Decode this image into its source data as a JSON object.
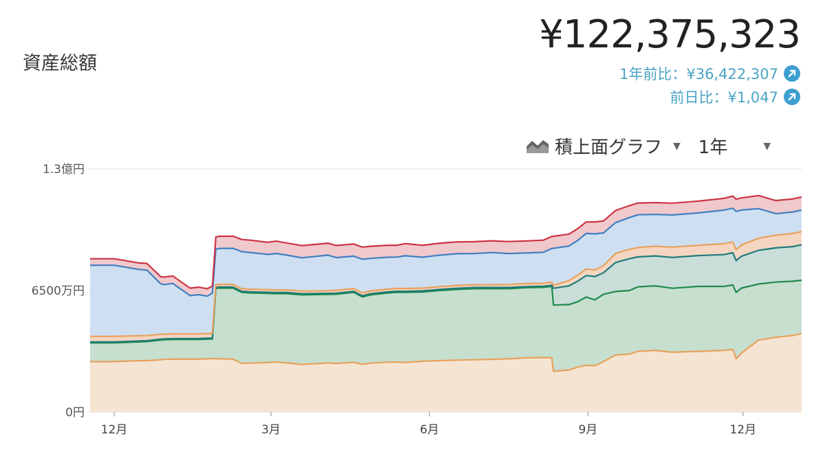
{
  "header": {
    "title": "資産総額",
    "total": "¥122,375,323",
    "year_compare": "1年前比：¥36,422,307",
    "day_compare": "前日比：¥1,047"
  },
  "controls": {
    "chart_type": "積上面グラフ",
    "range": "1年"
  },
  "colors": {
    "orange": "#e8a15a",
    "green": "#1d8a4a",
    "teal": "#1f7a7a",
    "blue": "#3f7fc0",
    "red": "#cc3344",
    "link": "#4aa3c4"
  },
  "chart_data": {
    "type": "area",
    "stacked": true,
    "y_unit": "円",
    "ylim": [
      0,
      130000000
    ],
    "ytick_labels": [
      "0円",
      "6500万円",
      "1.3億円"
    ],
    "yticks": [
      0,
      65000000,
      130000000
    ],
    "xtick_labels": [
      "12月",
      "3月",
      "6月",
      "9月",
      "12月"
    ],
    "xticks": [
      1,
      92,
      184,
      276,
      366
    ],
    "xlim": [
      -13,
      400
    ],
    "x": [
      -13,
      1,
      15,
      20,
      28,
      30,
      35,
      45,
      50,
      55,
      58,
      60,
      62,
      70,
      75,
      80,
      90,
      95,
      100,
      110,
      125,
      130,
      140,
      145,
      150,
      160,
      165,
      170,
      180,
      190,
      200,
      210,
      220,
      230,
      240,
      250,
      255,
      256,
      265,
      270,
      275,
      280,
      285,
      292,
      300,
      305,
      315,
      325,
      340,
      355,
      360,
      362,
      365,
      375,
      385,
      395,
      400
    ],
    "series": [
      {
        "values": [
          27.0,
          27.0,
          27.5,
          27.5,
          28.0,
          28.2,
          28.3,
          28.3,
          28.3,
          28.5,
          28.6,
          28.6,
          28.5,
          28.3,
          26.0,
          26.2,
          26.5,
          26.8,
          26.4,
          25.5,
          26.3,
          26.0,
          26.6,
          25.6,
          26.2,
          26.7,
          26.8,
          26.5,
          27.2,
          27.5,
          27.8,
          28.0,
          28.2,
          28.5,
          29.0,
          29.2,
          29.0,
          21.8,
          22.5,
          24.0,
          25.0,
          24.8,
          27.0,
          30.5,
          31.0,
          32.5,
          33.0,
          32.0,
          32.5,
          33.0,
          33.5,
          28.5,
          31.5,
          38.5,
          40.0,
          41.0,
          42.0
        ]
      },
      {
        "values": [
          10.0,
          10.0,
          10.0,
          10.2,
          10.5,
          10.5,
          10.5,
          10.5,
          10.5,
          10.5,
          10.5,
          37.5,
          37.8,
          38.0,
          38.0,
          37.5,
          37.0,
          36.5,
          37.0,
          37.2,
          36.6,
          37.0,
          37.4,
          36.0,
          36.5,
          37.0,
          37.2,
          37.5,
          37.0,
          37.5,
          37.8,
          38.0,
          37.8,
          37.5,
          37.5,
          37.5,
          38.2,
          35.4,
          35.0,
          35.0,
          36.5,
          35.2,
          36.0,
          34.0,
          34.0,
          34.5,
          34.5,
          34.2,
          34.7,
          34.2,
          34.5,
          35.5,
          34.8,
          30.0,
          29.5,
          29.0,
          28.5
        ]
      },
      {
        "values": [
          0.5,
          0.5,
          0.5,
          0.5,
          0.5,
          0.5,
          0.5,
          0.5,
          0.5,
          0.5,
          0.5,
          0.6,
          0.6,
          0.6,
          0.6,
          0.6,
          0.6,
          0.6,
          0.6,
          0.6,
          0.6,
          0.6,
          0.6,
          0.6,
          0.6,
          0.6,
          0.6,
          0.6,
          0.6,
          0.6,
          0.6,
          0.6,
          0.6,
          0.6,
          0.6,
          0.6,
          0.6,
          9.0,
          10.0,
          11.0,
          11.5,
          12.5,
          11.5,
          15.5,
          17.0,
          16.0,
          16.0,
          16.5,
          16.5,
          17.0,
          17.2,
          17.0,
          17.0,
          18.0,
          18.3,
          18.5,
          19.0
        ]
      },
      {
        "values": [
          3.0,
          3.0,
          2.8,
          2.7,
          2.6,
          2.5,
          2.5,
          2.5,
          2.5,
          2.5,
          2.5,
          1.4,
          1.4,
          1.4,
          1.4,
          1.4,
          1.4,
          1.4,
          1.4,
          1.4,
          1.4,
          1.5,
          1.5,
          1.5,
          1.5,
          1.5,
          1.5,
          1.5,
          1.5,
          1.5,
          1.5,
          1.5,
          1.5,
          1.6,
          1.6,
          1.6,
          1.6,
          1.6,
          2.8,
          3.2,
          3.5,
          3.5,
          3.8,
          4.8,
          5.0,
          5.0,
          5.2,
          5.5,
          5.5,
          5.8,
          5.8,
          5.8,
          6.0,
          6.5,
          6.8,
          7.0,
          7.0
        ]
      },
      {
        "values": [
          38.0,
          38.0,
          35.5,
          35.0,
          27.0,
          26.5,
          27.0,
          20.5,
          21.0,
          20.0,
          21.5,
          19.0,
          19.2,
          19.3,
          19.8,
          19.6,
          18.8,
          19.5,
          18.7,
          17.8,
          19.0,
          17.5,
          17.3,
          18.0,
          17.4,
          17.0,
          16.8,
          17.5,
          16.5,
          16.8,
          17.0,
          16.7,
          17.2,
          16.6,
          16.4,
          16.5,
          18.1,
          19.8,
          18.5,
          18.6,
          19.0,
          19.3,
          17.5,
          16.5,
          17.0,
          17.5,
          17.0,
          17.2,
          17.3,
          18.0,
          18.0,
          20.5,
          18.7,
          15.8,
          11.5,
          11.5,
          11.5
        ]
      },
      {
        "values": [
          3.5,
          3.5,
          3.5,
          3.6,
          3.8,
          4.0,
          4.0,
          4.0,
          4.0,
          4.0,
          3.8,
          6.5,
          6.5,
          6.5,
          6.5,
          6.6,
          6.5,
          6.6,
          6.5,
          6.5,
          6.4,
          6.5,
          6.5,
          6.5,
          6.5,
          6.4,
          6.3,
          6.5,
          6.4,
          6.4,
          6.3,
          6.3,
          6.3,
          6.4,
          6.4,
          6.5,
          6.4,
          6.4,
          6.4,
          6.3,
          6.2,
          6.4,
          6.4,
          6.5,
          6.4,
          6.3,
          6.3,
          6.3,
          6.3,
          6.3,
          6.5,
          6.5,
          6.5,
          7.0,
          7.0,
          7.0,
          7.0
        ]
      }
    ]
  }
}
